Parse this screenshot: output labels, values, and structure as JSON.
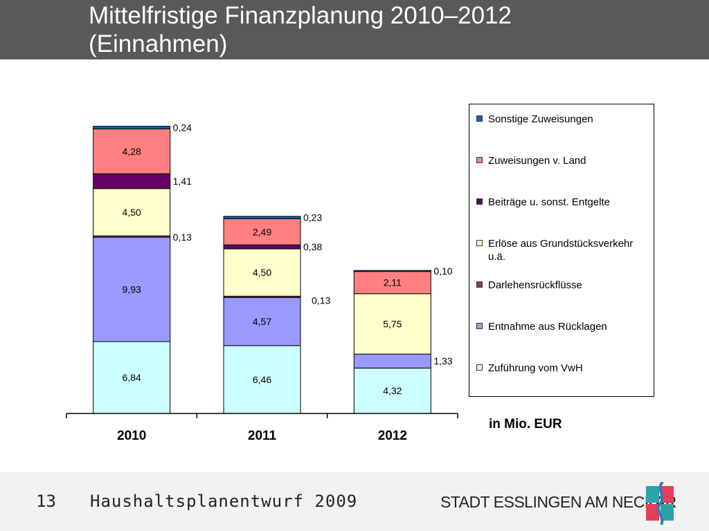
{
  "slide": {
    "title_lines": [
      "Mittelfristige Finanzplanung 2010–2012",
      "(Einnahmen)"
    ],
    "unit_label": "in Mio. EUR",
    "footer": {
      "page_number": "13",
      "caption": "Haushaltsplanentwurf 2009",
      "city": "STADT ESSLINGEN AM NECKAR"
    }
  },
  "colors": {
    "title_bar": "#595959",
    "footer_bar": "#f2f2f2",
    "logo_red": "#e63d58",
    "logo_teal": "#2aa3a8",
    "logo_blue": "#3a76b8"
  },
  "chart_data": {
    "type": "bar",
    "stacked": true,
    "categories": [
      "2010",
      "2011",
      "2012"
    ],
    "ylim": [
      0,
      28
    ],
    "grid": false,
    "legend_position": "right",
    "series": [
      {
        "name": "Zuführung vom VwH",
        "color": "#ccffff",
        "values": [
          6.84,
          6.46,
          4.32
        ],
        "labels": [
          "6,84",
          "6,46",
          "4,32"
        ]
      },
      {
        "name": "Entnahme aus Rücklagen",
        "color": "#9999ff",
        "values": [
          9.93,
          4.57,
          1.33
        ],
        "labels": [
          "9,93",
          "4,57",
          "1,33"
        ]
      },
      {
        "name": "Darlehensrückflüsse",
        "color": "#993366",
        "values": [
          0.13,
          0.13,
          0
        ],
        "labels": [
          "0,13",
          "0,13",
          ""
        ]
      },
      {
        "name": "Erlöse aus Grundstücksverkehr u.ä.",
        "color": "#ffffcc",
        "values": [
          4.5,
          4.5,
          5.75
        ],
        "labels": [
          "4,50",
          "4,50",
          "5,75"
        ]
      },
      {
        "name": "Beiträge u. sonst. Entgelte",
        "color": "#660066",
        "values": [
          1.41,
          0.38,
          0
        ],
        "labels": [
          "1,41",
          "0,38",
          ""
        ]
      },
      {
        "name": "Zuweisungen v. Land",
        "color": "#ff8080",
        "values": [
          4.28,
          2.49,
          2.11
        ],
        "labels": [
          "4,28",
          "2,49",
          "2,11"
        ]
      },
      {
        "name": "Sonstige Zuweisungen",
        "color": "#0066cc",
        "values": [
          0.24,
          0.23,
          0.1
        ],
        "labels": [
          "0,24",
          "0,23",
          "0,10"
        ]
      }
    ]
  }
}
